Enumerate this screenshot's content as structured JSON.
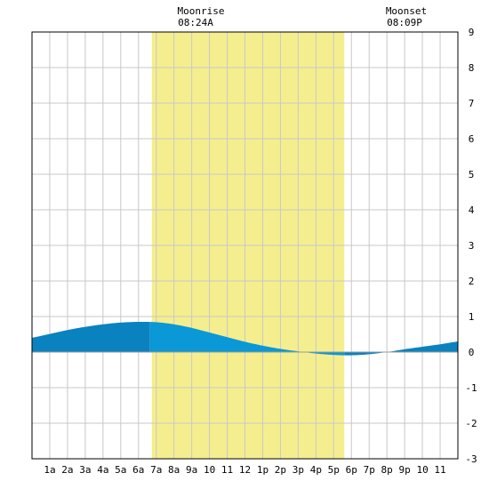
{
  "header": {
    "moonrise_label": "Moonrise",
    "moonrise_time": "08:24A",
    "moonset_label": "Moonset",
    "moonset_time": "08:09P"
  },
  "colors": {
    "background": "#ffffff",
    "grid": "#c8c8c8",
    "daylight_band": "#f5ee8e",
    "tide_dark": "#0a82bf",
    "tide_light": "#0a98d6",
    "frame": "#000000"
  },
  "chart_data": {
    "type": "area",
    "title": "",
    "xlabel": "",
    "ylabel": "",
    "x_range_hours": [
      0,
      24
    ],
    "ylim": [
      -3,
      9
    ],
    "y_ticks": [
      -3,
      -2,
      -1,
      0,
      1,
      2,
      3,
      4,
      5,
      6,
      7,
      8,
      9
    ],
    "x_tick_labels": [
      "1a",
      "2a",
      "3a",
      "4a",
      "5a",
      "6a",
      "7a",
      "8a",
      "9a",
      "10",
      "11",
      "12",
      "1p",
      "2p",
      "3p",
      "4p",
      "5p",
      "6p",
      "7p",
      "8p",
      "9p",
      "10",
      "11"
    ],
    "grid": true,
    "highlight_band": {
      "start_hour": 6.75,
      "end_hour": 17.6
    },
    "light_fill_span_hours": [
      6.65,
      17.6
    ],
    "series": [
      {
        "x": [
          0,
          1,
          2,
          3,
          4,
          5,
          6,
          7,
          8,
          9,
          10,
          11,
          12,
          13,
          14,
          15,
          16,
          17,
          18,
          19,
          20,
          21,
          22,
          23,
          24
        ],
        "values": [
          0.4,
          0.51,
          0.62,
          0.71,
          0.78,
          0.83,
          0.85,
          0.84,
          0.78,
          0.68,
          0.55,
          0.42,
          0.29,
          0.18,
          0.09,
          0.02,
          -0.04,
          -0.08,
          -0.09,
          -0.06,
          0.0,
          0.08,
          0.15,
          0.22,
          0.3
        ]
      }
    ]
  }
}
